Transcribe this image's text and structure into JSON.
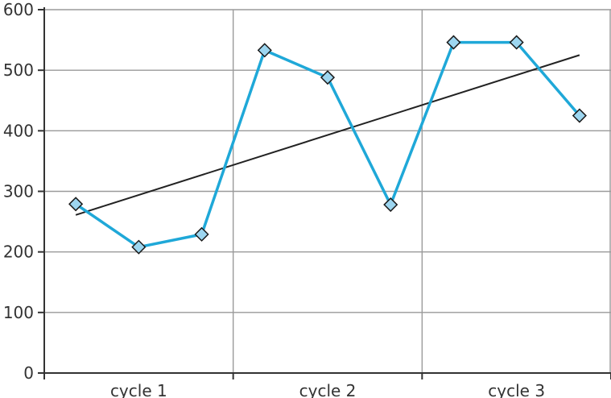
{
  "chart_data": {
    "type": "line",
    "x": [
      1,
      2,
      3,
      4,
      5,
      6,
      7,
      8,
      9
    ],
    "series": [
      {
        "values": [
          279,
          208,
          229,
          533,
          488,
          278,
          546,
          546,
          425
        ],
        "color": "#1fa8d8",
        "marker": "diamond",
        "marker_fill": "#9dd6f0"
      }
    ],
    "trendline": {
      "type": "linear",
      "from": [
        1,
        261
      ],
      "to": [
        9,
        525
      ],
      "color": "#222222"
    },
    "categories": [
      "cycle 1",
      "cycle 2",
      "cycle 3"
    ],
    "category_span": 3,
    "ylim": [
      0,
      600
    ],
    "yticks": [
      0,
      100,
      200,
      300,
      400,
      500,
      600
    ],
    "grid": true,
    "legend": "none"
  }
}
